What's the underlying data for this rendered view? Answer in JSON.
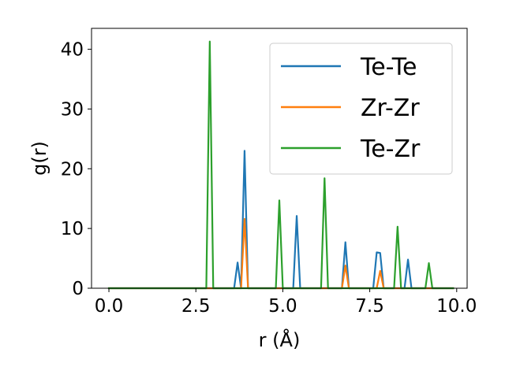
{
  "chart_data": {
    "type": "line",
    "title": "",
    "xlabel": "r (Å)",
    "ylabel": "g(r)",
    "xlim": [
      -0.5,
      10.3
    ],
    "ylim": [
      0,
      43.5
    ],
    "xticks": [
      0.0,
      2.5,
      5.0,
      7.5,
      10.0
    ],
    "xtick_labels": [
      "0.0",
      "2.5",
      "5.0",
      "7.5",
      "10.0"
    ],
    "yticks": [
      0,
      10,
      20,
      30,
      40
    ],
    "ytick_labels": [
      "0",
      "10",
      "20",
      "30",
      "40"
    ],
    "grid": false,
    "legend_position": "top-right",
    "series": [
      {
        "name": "Te-Te",
        "color": "#1f77b4",
        "points": [
          [
            0.0,
            0
          ],
          [
            3.6,
            0
          ],
          [
            3.7,
            4.3
          ],
          [
            3.8,
            0
          ],
          [
            3.9,
            23.0
          ],
          [
            4.0,
            0
          ],
          [
            5.3,
            0
          ],
          [
            5.4,
            12.1
          ],
          [
            5.5,
            0
          ],
          [
            6.7,
            0
          ],
          [
            6.8,
            7.7
          ],
          [
            6.9,
            0
          ],
          [
            7.6,
            0
          ],
          [
            7.7,
            6.0
          ],
          [
            7.8,
            5.9
          ],
          [
            7.9,
            0
          ],
          [
            8.5,
            0
          ],
          [
            8.6,
            4.8
          ],
          [
            8.7,
            0
          ],
          [
            9.9,
            0
          ]
        ]
      },
      {
        "name": "Zr-Zr",
        "color": "#ff7f0e",
        "points": [
          [
            0.0,
            0
          ],
          [
            3.8,
            0
          ],
          [
            3.9,
            11.6
          ],
          [
            4.0,
            0
          ],
          [
            6.7,
            0
          ],
          [
            6.8,
            3.8
          ],
          [
            6.9,
            0
          ],
          [
            7.7,
            0
          ],
          [
            7.8,
            2.9
          ],
          [
            7.9,
            0
          ],
          [
            9.9,
            0
          ]
        ]
      },
      {
        "name": "Te-Zr",
        "color": "#2ca02c",
        "points": [
          [
            0.0,
            0
          ],
          [
            2.8,
            0
          ],
          [
            2.9,
            41.3
          ],
          [
            3.0,
            0
          ],
          [
            4.8,
            0
          ],
          [
            4.9,
            14.7
          ],
          [
            5.0,
            0
          ],
          [
            6.1,
            0
          ],
          [
            6.2,
            18.4
          ],
          [
            6.3,
            0
          ],
          [
            8.2,
            0
          ],
          [
            8.3,
            10.3
          ],
          [
            8.4,
            0
          ],
          [
            9.1,
            0
          ],
          [
            9.2,
            4.2
          ],
          [
            9.3,
            0
          ],
          [
            9.9,
            0
          ]
        ]
      }
    ]
  }
}
